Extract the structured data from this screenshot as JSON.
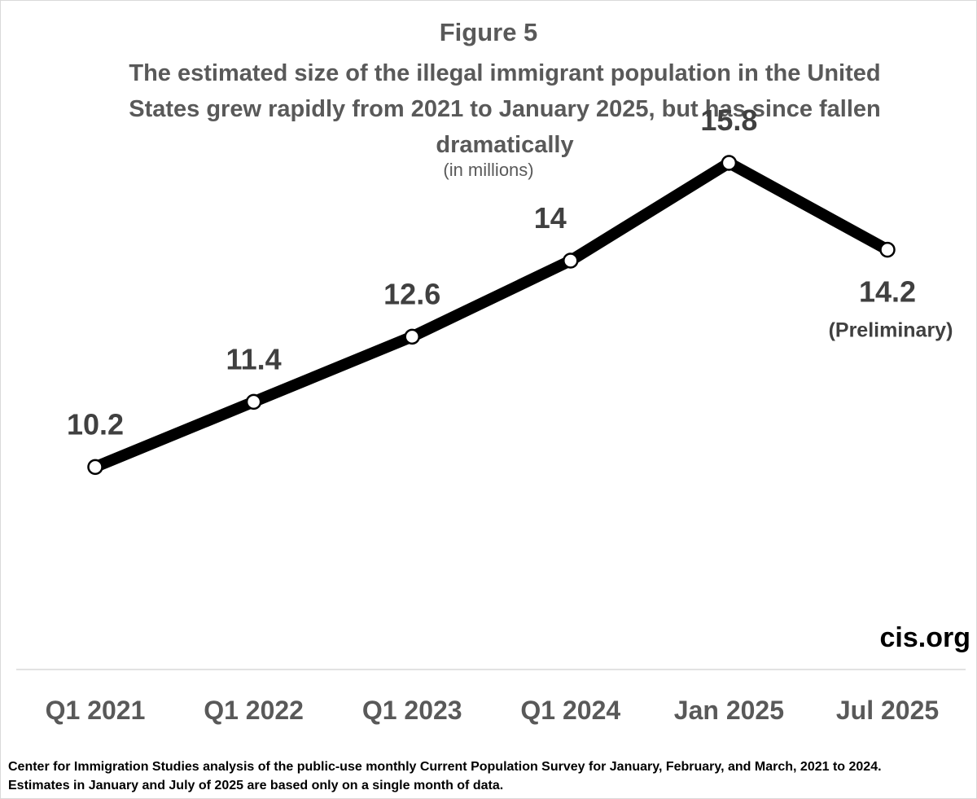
{
  "figure_label": "Figure 5",
  "watermark": "cis.org",
  "source_lines": [
    "Center for Immigration Studies analysis of the public-use monthly Current Population Survey for January, February, and March, 2021 to 2024.",
    "Estimates in January and July of 2025 are based only on a single month of data."
  ],
  "chart_data": {
    "type": "line",
    "title": "The estimated size of the illegal immigrant population in the United States grew rapidly from 2021 to January 2025, but has since fallen dramatically",
    "subtitle": "(in millions)",
    "categories": [
      "Q1 2021",
      "Q1 2022",
      "Q1 2023",
      "Q1 2024",
      "Jan 2025",
      "Jul 2025"
    ],
    "series": [
      {
        "values": [
          10.2,
          11.4,
          12.6,
          14,
          15.8,
          14.2
        ]
      }
    ],
    "data_labels": [
      "10.2",
      "11.4",
      "12.6",
      "14",
      "15.8",
      "14.2"
    ],
    "annotations": [
      {
        "category": "Jul 2025",
        "text": "(Preliminary)"
      }
    ],
    "ylim": [
      6.5,
      17.3
    ],
    "grid": false,
    "legend": "none",
    "line_color": "#000000",
    "marker_fill": "#ffffff"
  }
}
